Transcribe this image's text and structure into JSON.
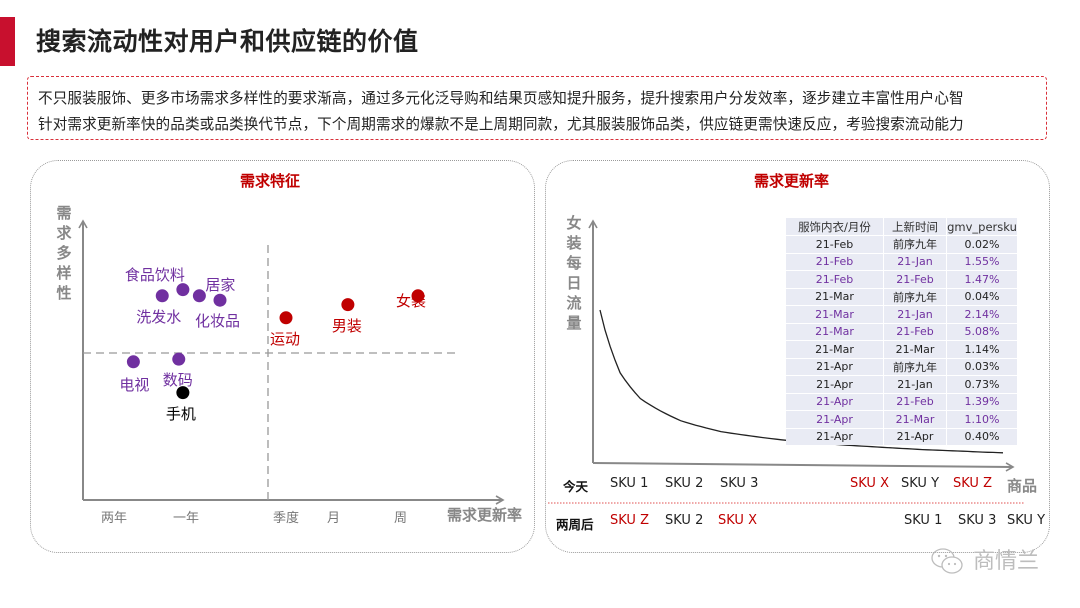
{
  "header": {
    "title": "搜索流动性对用户和供应链的价值"
  },
  "intro": {
    "lines": [
      "不只服装服饰、更多市场需求多样性的要求渐高，通过多元化泛导购和结果页感知提升服务，提升搜索用户分发效率，逐步建立丰富性用户心智",
      "针对需求更新率快的品类或品类换代节点，下个周期需求的爆款不是上周期同款，尤其服装服饰品类，供应链更需快速反应，考验搜索流动能力"
    ]
  },
  "colors": {
    "accent_red": "#c00000",
    "purple": "#7030a0",
    "black": "#000000",
    "title_red": "#c8102e"
  },
  "left_panel": {
    "title": "需求特征",
    "y_axis_label": "需求多样性",
    "x_axis_label": "需求更新率",
    "x_ticks": [
      "两年",
      "一年",
      "季度",
      "月",
      "周"
    ]
  },
  "chart_data": [
    {
      "type": "scatter",
      "title": "需求特征",
      "xlabel": "需求更新率",
      "ylabel": "需求多样性",
      "x_tick_labels": [
        "两年",
        "一年",
        "季度",
        "月",
        "周"
      ],
      "quadrant_dividers": true,
      "points": [
        {
          "label": "食品饮料",
          "x": 1.15,
          "y": 0.72,
          "group": "purple"
        },
        {
          "label": "洗发水",
          "x": 0.9,
          "y": 0.65,
          "group": "purple"
        },
        {
          "label": "居家",
          "x": 1.35,
          "y": 0.65,
          "group": "purple"
        },
        {
          "label": "化妆品",
          "x": 1.6,
          "y": 0.6,
          "group": "purple"
        },
        {
          "label": "数码",
          "x": 1.1,
          "y": -0.07,
          "group": "purple"
        },
        {
          "label": "电视",
          "x": 0.55,
          "y": -0.1,
          "group": "purple"
        },
        {
          "label": "手机",
          "x": 1.15,
          "y": -0.45,
          "group": "black"
        },
        {
          "label": "运动",
          "x": 2.4,
          "y": 0.4,
          "group": "red"
        },
        {
          "label": "男装",
          "x": 3.15,
          "y": 0.55,
          "group": "red"
        },
        {
          "label": "女装",
          "x": 4.0,
          "y": 0.65,
          "group": "red"
        }
      ]
    },
    {
      "type": "line",
      "title": "需求更新率",
      "xlabel": "商品",
      "ylabel": "女装每日流量",
      "shape": "long-tail decay",
      "x": [
        0,
        0.05,
        0.1,
        0.2,
        0.3,
        0.45,
        0.6,
        0.8,
        1.0
      ],
      "y": [
        1.0,
        0.62,
        0.45,
        0.3,
        0.22,
        0.16,
        0.12,
        0.08,
        0.05
      ]
    }
  ],
  "right_panel": {
    "title": "需求更新率",
    "y_axis_label": "女装每日流量",
    "x_axis_label": "商品",
    "table": {
      "headers": [
        "服饰内衣/月份",
        "上新时间",
        "gmv_persku"
      ],
      "rows": [
        {
          "cells": [
            "21-Feb",
            "前序九年",
            "0.02%"
          ],
          "highlight": false
        },
        {
          "cells": [
            "21-Feb",
            "21-Jan",
            "1.55%"
          ],
          "highlight": true
        },
        {
          "cells": [
            "21-Feb",
            "21-Feb",
            "1.47%"
          ],
          "highlight": true
        },
        {
          "cells": [
            "21-Mar",
            "前序九年",
            "0.04%"
          ],
          "highlight": false
        },
        {
          "cells": [
            "21-Mar",
            "21-Jan",
            "2.14%"
          ],
          "highlight": true
        },
        {
          "cells": [
            "21-Mar",
            "21-Feb",
            "5.08%"
          ],
          "highlight": true
        },
        {
          "cells": [
            "21-Mar",
            "21-Mar",
            "1.14%"
          ],
          "highlight": false
        },
        {
          "cells": [
            "21-Apr",
            "前序九年",
            "0.03%"
          ],
          "highlight": false
        },
        {
          "cells": [
            "21-Apr",
            "21-Jan",
            "0.73%"
          ],
          "highlight": false
        },
        {
          "cells": [
            "21-Apr",
            "21-Feb",
            "1.39%"
          ],
          "highlight": true
        },
        {
          "cells": [
            "21-Apr",
            "21-Mar",
            "1.10%"
          ],
          "highlight": true
        },
        {
          "cells": [
            "21-Apr",
            "21-Apr",
            "0.40%"
          ],
          "highlight": false
        }
      ]
    },
    "today": {
      "label": "今天",
      "skus": [
        {
          "text": "SKU 1",
          "red": false
        },
        {
          "text": "SKU 2",
          "red": false
        },
        {
          "text": "SKU 3",
          "red": false
        },
        {
          "text": "SKU X",
          "red": true
        },
        {
          "text": "SKU Y",
          "red": false
        },
        {
          "text": "SKU Z",
          "red": true
        }
      ]
    },
    "two_weeks": {
      "label": "两周后",
      "skus": [
        {
          "text": "SKU Z",
          "red": true
        },
        {
          "text": "SKU 2",
          "red": false
        },
        {
          "text": "SKU X",
          "red": true
        },
        {
          "text": "SKU 1",
          "red": false
        },
        {
          "text": "SKU 3",
          "red": false
        },
        {
          "text": "SKU Y",
          "red": false
        }
      ]
    }
  },
  "watermark": {
    "text": "商情兰",
    "icon": "wechat-icon"
  }
}
